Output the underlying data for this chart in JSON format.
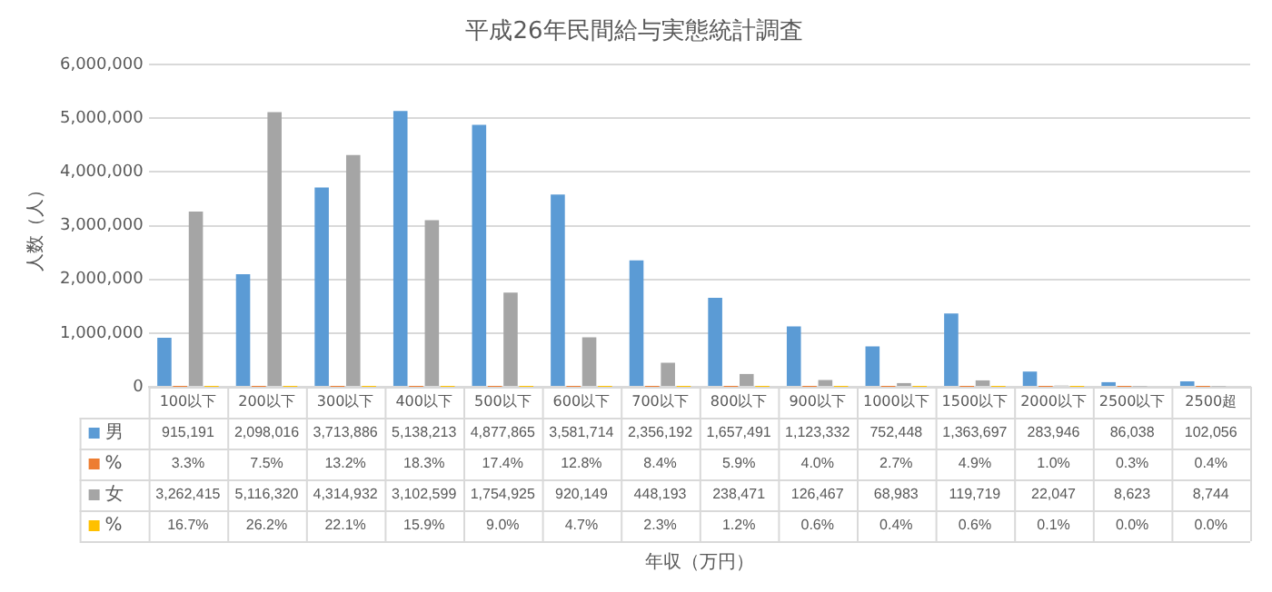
{
  "chart_data": {
    "type": "bar",
    "title": "平成26年民間給与実態統計調査",
    "annotations": [
      "年収（万円）"
    ],
    "legend": "bottom left",
    "ylabel": "人数（人）",
    "categories": [
      "100以下",
      "200以下",
      "300以下",
      "400以下",
      "500以下",
      "600以下",
      "700以下",
      "800以下",
      "900以下",
      "1000以下",
      "1500以下",
      "2000以下",
      "2500以下",
      "2500超"
    ],
    "series": [
      {
        "name": "男",
        "color": "#5b9bd5",
        "values": [
          915191,
          2098016,
          3713886,
          5138213,
          4877865,
          3581714,
          2356192,
          1657491,
          1123332,
          752448,
          1363697,
          283946,
          86038,
          102056
        ],
        "value_labels": [
          "915,191",
          "2,098,016",
          "3,713,886",
          "5,138,213",
          "4,877,865",
          "3,581,714",
          "2,356,192",
          "1,657,491",
          "1,123,332",
          "752,448",
          "1,363,697",
          "283,946",
          "86,038",
          "102,056"
        ]
      },
      {
        "name": "%",
        "color": "#ed7d31",
        "values": [
          3.3,
          7.5,
          13.2,
          18.3,
          17.4,
          12.8,
          8.4,
          5.9,
          4.0,
          2.7,
          4.9,
          1.0,
          0.3,
          0.4
        ],
        "value_labels": [
          "3.3%",
          "7.5%",
          "13.2%",
          "18.3%",
          "17.4%",
          "12.8%",
          "8.4%",
          "5.9%",
          "4.0%",
          "2.7%",
          "4.9%",
          "1.0%",
          "0.3%",
          "0.4%"
        ]
      },
      {
        "name": "女",
        "color": "#a5a5a5",
        "values": [
          3262415,
          5116320,
          4314932,
          3102599,
          1754925,
          920149,
          448193,
          238471,
          126467,
          68983,
          119719,
          22047,
          8623,
          8744
        ],
        "value_labels": [
          "3,262,415",
          "5,116,320",
          "4,314,932",
          "3,102,599",
          "1,754,925",
          "920,149",
          "448,193",
          "238,471",
          "126,467",
          "68,983",
          "119,719",
          "22,047",
          "8,623",
          "8,744"
        ]
      },
      {
        "name": "%",
        "color": "#ffc000",
        "values": [
          16.7,
          26.2,
          22.1,
          15.9,
          9.0,
          4.7,
          2.3,
          1.2,
          0.6,
          0.4,
          0.6,
          0.1,
          0.0,
          0.0
        ],
        "value_labels": [
          "16.7%",
          "26.2%",
          "22.1%",
          "15.9%",
          "9.0%",
          "4.7%",
          "2.3%",
          "1.2%",
          "0.6%",
          "0.4%",
          "0.6%",
          "0.1%",
          "0.0%",
          "0.0%"
        ]
      }
    ],
    "ylim": [
      0,
      6000000
    ],
    "yticks": [
      0,
      {
        "value": 1000000,
        "label": "1,000,000"
      },
      {
        "value": 2000000,
        "label": "2,000,000"
      },
      {
        "value": 3000000,
        "label": "3,000,000"
      },
      {
        "value": 4000000,
        "label": "4,000,000"
      },
      {
        "value": 5000000,
        "label": "5,000,000"
      },
      {
        "value": 6000000,
        "label": "6,000,000"
      }
    ],
    "grid": "y"
  }
}
